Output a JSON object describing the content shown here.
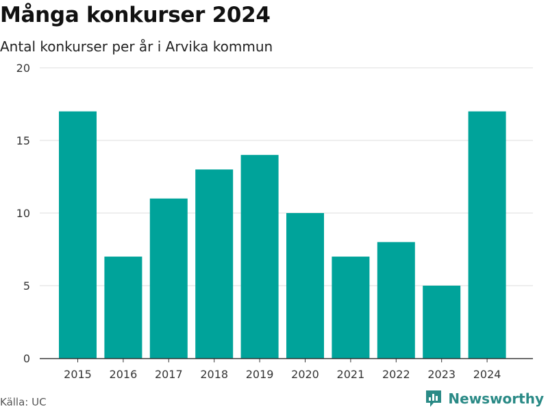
{
  "title": "Många konkurser 2024",
  "subtitle": "Antal konkurser per år i Arvika kommun",
  "source": "Källa: UC",
  "brand": {
    "name": "Newsworthy",
    "icon": "newsworthy-logo-icon"
  },
  "colors": {
    "bar": "#00a39a",
    "grid": "#dddddd",
    "axis": "#333333",
    "brand": "#2a8a86"
  },
  "chart_data": {
    "type": "bar",
    "title": "Många konkurser 2024",
    "subtitle": "Antal konkurser per år i Arvika kommun",
    "categories": [
      "2015",
      "2016",
      "2017",
      "2018",
      "2019",
      "2020",
      "2021",
      "2022",
      "2023",
      "2024"
    ],
    "values": [
      17,
      7,
      11,
      13,
      14,
      10,
      7,
      8,
      5,
      17
    ],
    "xlabel": "",
    "ylabel": "",
    "ylim": [
      0,
      20
    ],
    "yticks": [
      0,
      5,
      10,
      15,
      20
    ],
    "grid": true,
    "legend": "none"
  }
}
